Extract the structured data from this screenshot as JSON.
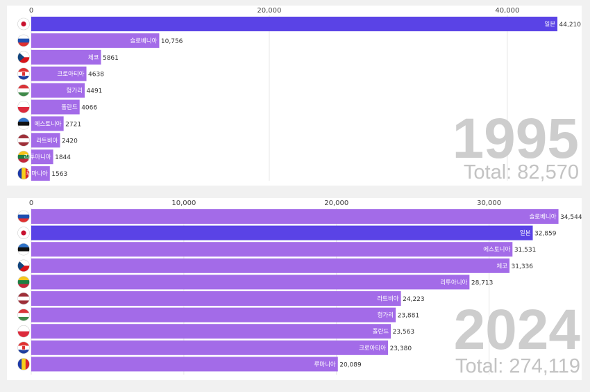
{
  "colors": {
    "bar": "#a36be8",
    "highlight_bar": "#5a43e6",
    "year_text": "#cdcdcd",
    "total_text": "#c3c3c3"
  },
  "chart_data": [
    {
      "type": "bar",
      "orientation": "horizontal",
      "year": "1995",
      "total_label": "Total: 82,570",
      "xlim": [
        0,
        44500
      ],
      "ticks": [
        {
          "value": 0,
          "label": "0"
        },
        {
          "value": 20000,
          "label": "20,000"
        },
        {
          "value": 40000,
          "label": "40,000"
        }
      ],
      "categories": [
        "일본",
        "슬로베니아",
        "체코",
        "크로아티아",
        "헝가리",
        "폴란드",
        "에스토니아",
        "라트비아",
        "리투아니아",
        "루마니아"
      ],
      "value_labels": [
        "44,210",
        "10,756",
        "5861",
        "4638",
        "4491",
        "4066",
        "2721",
        "2420",
        "1844",
        "1563"
      ],
      "values": [
        44210,
        10756,
        5861,
        4638,
        4491,
        4066,
        2721,
        2420,
        1844,
        1563
      ],
      "flags": [
        "japan-flag",
        "slovenia-flag",
        "czech-flag",
        "croatia-flag",
        "hungary-flag",
        "poland-flag",
        "estonia-flag",
        "latvia-flag",
        "lithuania-flag",
        "romania-flag"
      ],
      "highlight": "일본",
      "grid": true
    },
    {
      "type": "bar",
      "orientation": "horizontal",
      "year": "2024",
      "total_label": "Total: 274,119",
      "xlim": [
        0,
        34700
      ],
      "ticks": [
        {
          "value": 0,
          "label": "0"
        },
        {
          "value": 10000,
          "label": "10,000"
        },
        {
          "value": 20000,
          "label": "20,000"
        },
        {
          "value": 30000,
          "label": "30,000"
        }
      ],
      "categories": [
        "슬로베니아",
        "일본",
        "에스토니아",
        "체코",
        "리투아니아",
        "라트비아",
        "헝가리",
        "폴란드",
        "크로아티아",
        "루마니아"
      ],
      "value_labels": [
        "34,544",
        "32,859",
        "31,531",
        "31,336",
        "28,713",
        "24,223",
        "23,881",
        "23,563",
        "23,380",
        "20,089"
      ],
      "values": [
        34544,
        32859,
        31531,
        31336,
        28713,
        24223,
        23881,
        23563,
        23380,
        20089
      ],
      "flags": [
        "slovenia-flag",
        "japan-flag",
        "estonia-flag",
        "czech-flag",
        "lithuania-flag",
        "latvia-flag",
        "hungary-flag",
        "poland-flag",
        "croatia-flag",
        "romania-flag"
      ],
      "highlight": "일본",
      "grid": true
    }
  ]
}
